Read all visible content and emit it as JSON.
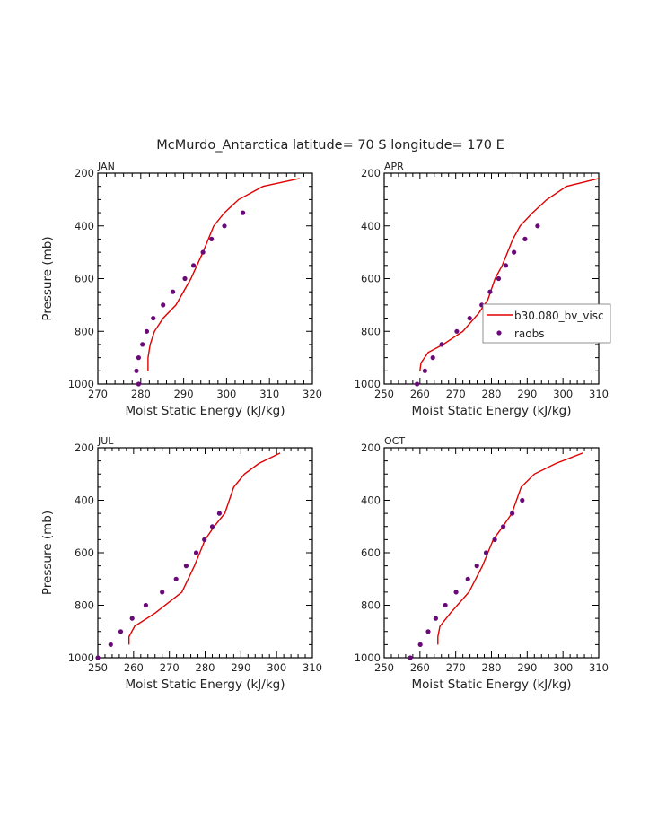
{
  "title": "McMurdo_Antarctica  latitude= 70 S longitude= 170 E",
  "legend": {
    "model_label": "b30.080_bv_visc",
    "obs_label": "raobs",
    "model_color": "#e00000",
    "obs_color": "#6a0a78"
  },
  "chart_data": [
    {
      "type": "line",
      "panel": "JAN",
      "title": "JAN",
      "xlabel": "Moist Static Energy (kJ/kg)",
      "ylabel": "Pressure (mb)",
      "xlim": [
        270,
        320
      ],
      "ylim": [
        1000,
        200
      ],
      "xticks": [
        270,
        280,
        290,
        300,
        310,
        320
      ],
      "yticks": [
        200,
        400,
        600,
        800,
        1000
      ],
      "show_ylabel": true,
      "legend": false,
      "series": [
        {
          "name": "b30.080_bv_visc",
          "kind": "line",
          "x": [
            281.7,
            281.7,
            282.2,
            283.2,
            285.2,
            288.2,
            291.7,
            294.5,
            297.0,
            299.5,
            302.8,
            308.5,
            317.0
          ],
          "y": [
            950,
            900,
            850,
            800,
            750,
            700,
            600,
            500,
            400,
            350,
            300,
            250,
            220
          ]
        },
        {
          "name": "raobs",
          "kind": "scatter",
          "x": [
            279.5,
            279.0,
            279.5,
            280.4,
            281.4,
            282.9,
            285.2,
            287.5,
            290.3,
            292.3,
            294.5,
            296.5,
            299.5,
            303.8
          ],
          "y": [
            1000,
            950,
            900,
            850,
            800,
            750,
            700,
            650,
            600,
            550,
            500,
            450,
            400,
            350
          ]
        }
      ]
    },
    {
      "type": "line",
      "panel": "APR",
      "title": "APR",
      "xlabel": "Moist Static Energy (kJ/kg)",
      "ylabel": "",
      "xlim": [
        250,
        310
      ],
      "ylim": [
        1000,
        200
      ],
      "xticks": [
        250,
        260,
        270,
        280,
        290,
        300,
        310
      ],
      "yticks": [
        200,
        400,
        600,
        800,
        1000
      ],
      "show_ylabel": false,
      "legend": true,
      "series": [
        {
          "name": "b30.080_bv_visc",
          "kind": "line",
          "x": [
            260.0,
            260.3,
            262.3,
            266.5,
            272.0,
            276.5,
            279.0,
            281.0,
            283.0,
            286.0,
            288.0,
            291.5,
            295.5,
            301.0,
            310.0
          ],
          "y": [
            950,
            920,
            880,
            850,
            800,
            730,
            680,
            600,
            550,
            450,
            400,
            350,
            300,
            250,
            220
          ]
        },
        {
          "name": "raobs",
          "kind": "scatter",
          "x": [
            259.2,
            261.4,
            263.6,
            266.1,
            270.3,
            273.9,
            277.3,
            279.6,
            282.0,
            284.0,
            286.3,
            289.4,
            292.9
          ],
          "y": [
            1000,
            950,
            900,
            850,
            800,
            750,
            700,
            650,
            600,
            550,
            500,
            450,
            400
          ]
        }
      ]
    },
    {
      "type": "line",
      "panel": "JUL",
      "title": "JUL",
      "xlabel": "Moist Static Energy (kJ/kg)",
      "ylabel": "Pressure (mb)",
      "xlim": [
        250,
        310
      ],
      "ylim": [
        1000,
        200
      ],
      "xticks": [
        250,
        260,
        270,
        280,
        290,
        300,
        310
      ],
      "yticks": [
        200,
        400,
        600,
        800,
        1000
      ],
      "show_ylabel": true,
      "legend": false,
      "series": [
        {
          "name": "b30.080_bv_visc",
          "kind": "line",
          "x": [
            258.7,
            258.7,
            260.3,
            266.0,
            273.5,
            277.0,
            280.0,
            282.5,
            285.5,
            288.0,
            291.0,
            295.0,
            301.0
          ],
          "y": [
            950,
            920,
            880,
            830,
            750,
            650,
            550,
            500,
            450,
            350,
            300,
            260,
            220
          ]
        },
        {
          "name": "raobs",
          "kind": "scatter",
          "x": [
            250.0,
            253.6,
            256.4,
            259.6,
            263.4,
            268.0,
            271.9,
            274.7,
            277.5,
            279.8,
            282.0,
            284.0
          ],
          "y": [
            1000,
            950,
            900,
            850,
            800,
            750,
            700,
            650,
            600,
            550,
            500,
            450
          ]
        }
      ]
    },
    {
      "type": "line",
      "panel": "OCT",
      "title": "OCT",
      "xlabel": "Moist Static Energy (kJ/kg)",
      "ylabel": "",
      "xlim": [
        250,
        310
      ],
      "ylim": [
        1000,
        200
      ],
      "xticks": [
        250,
        260,
        270,
        280,
        290,
        300,
        310
      ],
      "yticks": [
        200,
        400,
        600,
        800,
        1000
      ],
      "show_ylabel": false,
      "legend": false,
      "series": [
        {
          "name": "b30.080_bv_visc",
          "kind": "line",
          "x": [
            265.0,
            265.0,
            265.6,
            268.5,
            273.7,
            277.5,
            280.5,
            283.2,
            285.7,
            288.3,
            292.0,
            298.0,
            305.5
          ],
          "y": [
            950,
            920,
            880,
            830,
            750,
            650,
            550,
            500,
            450,
            350,
            300,
            260,
            220
          ]
        },
        {
          "name": "raobs",
          "kind": "scatter",
          "x": [
            257.3,
            260.1,
            262.3,
            264.4,
            267.1,
            270.1,
            273.4,
            275.9,
            278.5,
            280.9,
            283.3,
            285.8,
            288.6
          ],
          "y": [
            1000,
            950,
            900,
            850,
            800,
            750,
            700,
            650,
            600,
            550,
            500,
            450,
            400
          ]
        }
      ]
    }
  ]
}
